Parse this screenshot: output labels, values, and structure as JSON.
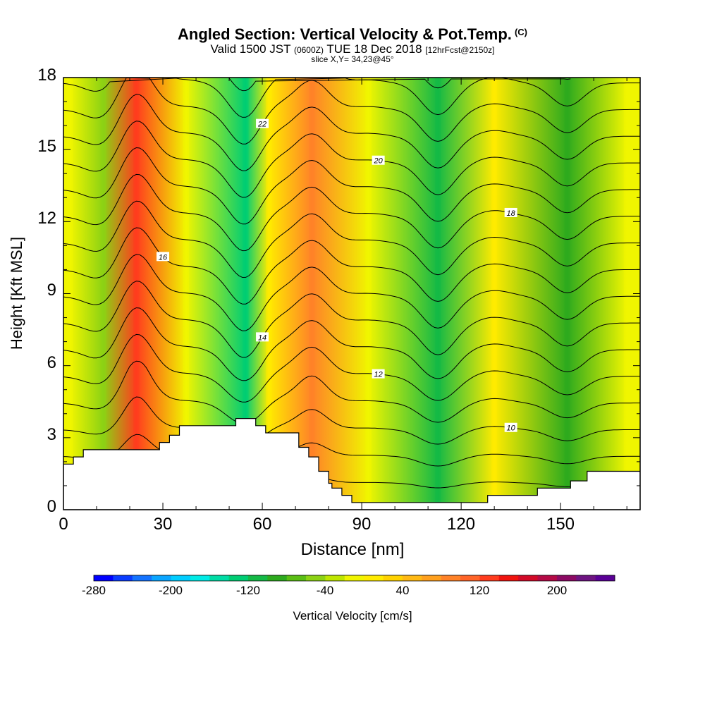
{
  "title": "Angled Section: Vertical Velocity & Pot.Temp.",
  "title_unit": "(C)",
  "subtitle": {
    "valid": "Valid 1500 JST",
    "utc": "(0600Z)",
    "date": "TUE 18 Dec 2018",
    "forecast": "[12hrFcst@2150z]"
  },
  "slice": "slice X,Y= 34,23@45°",
  "chart_data": {
    "type": "heatmap",
    "xlabel": "Distance [nm]",
    "ylabel": "Height [Kft MSL]",
    "xlim": [
      0,
      174
    ],
    "ylim": [
      0,
      18
    ],
    "x_ticks": [
      "0",
      "30",
      "60",
      "90",
      "120",
      "150"
    ],
    "y_ticks": [
      "0",
      "3",
      "6",
      "9",
      "12",
      "15",
      "18"
    ],
    "x_tick_values": [
      0,
      30,
      60,
      90,
      120,
      150
    ],
    "y_tick_values": [
      0,
      3,
      6,
      9,
      12,
      15,
      18
    ],
    "colorbar": {
      "label": "Vertical Velocity [cm/s]",
      "range": [
        -280,
        280
      ],
      "tick_labels": [
        "-280",
        "-200",
        "-120",
        "-40",
        "40",
        "120",
        "200"
      ],
      "tick_values": [
        -280,
        -200,
        -120,
        -40,
        40,
        120,
        200
      ],
      "colors": [
        "#0000ff",
        "#0a3cff",
        "#1473ff",
        "#0aa5ff",
        "#00cdff",
        "#00ebe6",
        "#00dca5",
        "#00cd73",
        "#14b946",
        "#2daa1e",
        "#5abe14",
        "#8cd214",
        "#bee600",
        "#f0f500",
        "#ffeb00",
        "#ffd200",
        "#ffb914",
        "#ffa01e",
        "#ff8228",
        "#ff6428",
        "#ff3c1e",
        "#f0140f",
        "#d20a28",
        "#b40a46",
        "#8c0a64",
        "#6e1482",
        "#5a0096"
      ]
    },
    "velocity_columns": [
      {
        "x": 2,
        "w": 0
      },
      {
        "x": 12,
        "w": -40
      },
      {
        "x": 22,
        "w": 150
      },
      {
        "x": 37,
        "w": 10
      },
      {
        "x": 55,
        "w": -130
      },
      {
        "x": 62,
        "w": 30
      },
      {
        "x": 75,
        "w": 100
      },
      {
        "x": 92,
        "w": 10
      },
      {
        "x": 113,
        "w": -110
      },
      {
        "x": 130,
        "w": 20
      },
      {
        "x": 152,
        "w": -80
      },
      {
        "x": 170,
        "w": 0
      }
    ],
    "isentropes": [
      {
        "level": 10,
        "label": "10"
      },
      {
        "level": 12,
        "label": "12"
      },
      {
        "level": 14,
        "label": "14"
      },
      {
        "level": 16,
        "label": "16"
      },
      {
        "level": 18,
        "label": "18"
      },
      {
        "level": 20,
        "label": "20"
      },
      {
        "level": 22,
        "label": "22"
      }
    ],
    "terrain": [
      {
        "x": 0,
        "h": 1.9
      },
      {
        "x": 3,
        "h": 1.9
      },
      {
        "x": 3,
        "h": 2.2
      },
      {
        "x": 6,
        "h": 2.2
      },
      {
        "x": 6,
        "h": 2.5
      },
      {
        "x": 29,
        "h": 2.5
      },
      {
        "x": 29,
        "h": 2.8
      },
      {
        "x": 32,
        "h": 2.8
      },
      {
        "x": 32,
        "h": 3.1
      },
      {
        "x": 35,
        "h": 3.1
      },
      {
        "x": 35,
        "h": 3.5
      },
      {
        "x": 52,
        "h": 3.5
      },
      {
        "x": 52,
        "h": 3.8
      },
      {
        "x": 58,
        "h": 3.8
      },
      {
        "x": 58,
        "h": 3.5
      },
      {
        "x": 61,
        "h": 3.5
      },
      {
        "x": 61,
        "h": 3.2
      },
      {
        "x": 71,
        "h": 3.2
      },
      {
        "x": 71,
        "h": 2.6
      },
      {
        "x": 74,
        "h": 2.6
      },
      {
        "x": 74,
        "h": 2.2
      },
      {
        "x": 77,
        "h": 2.2
      },
      {
        "x": 77,
        "h": 1.6
      },
      {
        "x": 80,
        "h": 1.6
      },
      {
        "x": 80,
        "h": 1.1
      },
      {
        "x": 81,
        "h": 1.1
      },
      {
        "x": 81,
        "h": 0.9
      },
      {
        "x": 84,
        "h": 0.9
      },
      {
        "x": 84,
        "h": 0.6
      },
      {
        "x": 87,
        "h": 0.6
      },
      {
        "x": 87,
        "h": 0.3
      },
      {
        "x": 128,
        "h": 0.3
      },
      {
        "x": 128,
        "h": 0.6
      },
      {
        "x": 143,
        "h": 0.6
      },
      {
        "x": 143,
        "h": 0.9
      },
      {
        "x": 153,
        "h": 0.9
      },
      {
        "x": 153,
        "h": 1.2
      },
      {
        "x": 158,
        "h": 1.2
      },
      {
        "x": 158,
        "h": 1.6
      },
      {
        "x": 174,
        "h": 1.6
      }
    ]
  }
}
